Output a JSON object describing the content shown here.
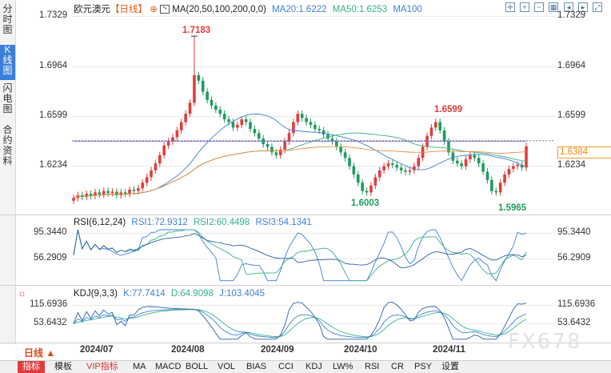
{
  "sidebar": {
    "tabs": [
      {
        "label": "分时图",
        "active": false
      },
      {
        "label": "K线图",
        "active": true
      },
      {
        "label": "闪电图",
        "active": false
      },
      {
        "label": "合约资料",
        "active": false
      }
    ]
  },
  "header": {
    "symbol": "欧元澳元",
    "period": "【日线】",
    "ma_label": "MA(20,50,100,200,0,0)",
    "ma20": "MA20:1.6222",
    "ma50": "MA50:1.6253",
    "ma100": "MA100"
  },
  "rsi_header": {
    "label": "RSI(6,12,24)",
    "rsi1": "RSI1:72.9312",
    "rsi2": "RSI2:60.4498",
    "rsi3": "RSI3:54.1341"
  },
  "kdj_header": {
    "label": "KDJ(9,3,3)",
    "k": "K:77.7414",
    "d": "D:64.9098",
    "j": "J:103.4045"
  },
  "price_axis": [
    "1.7329",
    "1.6964",
    "1.6599",
    "1.6234"
  ],
  "rsi_axis": [
    "95.3440",
    "56.2909"
  ],
  "kdj_axis": [
    "115.6936",
    "53.6432"
  ],
  "current_price": "1.6384",
  "annotations": {
    "high1": "1.7183",
    "high2": "1.6599",
    "low1": "1.6003",
    "low2": "1.5965"
  },
  "x_axis": [
    "2024/07",
    "2024/08",
    "2024/09",
    "2024/10",
    "2024/11"
  ],
  "period_button": "日线 ▲",
  "watermark": "FX678",
  "bottom_tabs": [
    "指标",
    "模板",
    "VIP指标",
    "MA",
    "MACD",
    "BOLL",
    "VOL",
    "BIAS",
    "CCI",
    "KDJ",
    "LW%",
    "RSI",
    "CR",
    "PSY",
    "设置"
  ],
  "colors": {
    "up": "#e23b3b",
    "down": "#1f9b5c",
    "ma20": "#3f7fd6",
    "ma50": "#35b18a",
    "ma100": "#e88b3a",
    "ma200": "#8a6fcf",
    "price": "#f08a10"
  },
  "chart_data": {
    "type": "candlestick",
    "title": "欧元澳元【日线】",
    "ylim": [
      1.58,
      1.74
    ],
    "closes": [
      1.601,
      1.603,
      1.6018,
      1.604,
      1.6025,
      1.605,
      1.6035,
      1.606,
      1.6045,
      1.6055,
      1.603,
      1.605,
      1.604,
      1.607,
      1.606,
      1.608,
      1.612,
      1.616,
      1.621,
      1.626,
      1.632,
      1.639,
      1.642,
      1.645,
      1.65,
      1.656,
      1.662,
      1.67,
      1.69,
      1.686,
      1.678,
      1.672,
      1.668,
      1.665,
      1.662,
      1.658,
      1.656,
      1.652,
      1.654,
      1.658,
      1.656,
      1.651,
      1.648,
      1.644,
      1.64,
      1.638,
      1.634,
      1.632,
      1.636,
      1.642,
      1.648,
      1.656,
      1.662,
      1.659,
      1.656,
      1.654,
      1.651,
      1.65,
      1.647,
      1.644,
      1.642,
      1.638,
      1.634,
      1.63,
      1.624,
      1.618,
      1.612,
      1.606,
      1.605,
      1.61,
      1.616,
      1.621,
      1.624,
      1.626,
      1.625,
      1.623,
      1.621,
      1.62,
      1.621,
      1.624,
      1.63,
      1.638,
      1.646,
      1.652,
      1.656,
      1.65,
      1.642,
      1.634,
      1.628,
      1.626,
      1.624,
      1.629,
      1.632,
      1.63,
      1.626,
      1.62,
      1.614,
      1.606,
      1.605,
      1.612,
      1.618,
      1.622,
      1.624,
      1.625,
      1.623,
      1.6384
    ],
    "high_marker": 1.7183,
    "second_high_marker": 1.6599,
    "low_markers": [
      1.6003,
      1.5965
    ],
    "ma_values": {
      "MA20": 1.6222,
      "MA50": 1.6253
    },
    "last_price": 1.6384,
    "rsi": {
      "RSI1": 72.9312,
      "RSI2": 60.4498,
      "RSI3": 54.1341,
      "ticks": [
        95.344,
        56.2909
      ]
    },
    "kdj": {
      "K": 77.7414,
      "D": 64.9098,
      "J": 103.4045,
      "ticks": [
        115.6936,
        53.6432
      ]
    },
    "x_labels": [
      "2024/07",
      "2024/08",
      "2024/09",
      "2024/10",
      "2024/11"
    ]
  }
}
